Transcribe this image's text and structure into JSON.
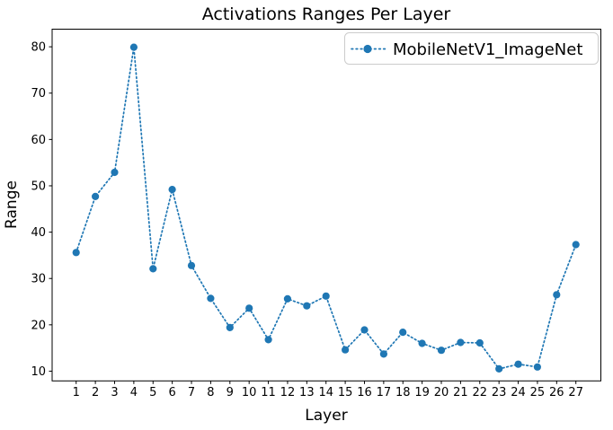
{
  "figure": {
    "background": "#ffffff"
  },
  "colors": {
    "accent": "#1f77b4",
    "spine": "#000000",
    "tick_text": "#000000",
    "legend_border": "#cccccc",
    "legend_background": "#ffffff"
  },
  "chart_data": {
    "type": "line",
    "title": "Activations Ranges Per Layer",
    "xlabel": "Layer",
    "ylabel": "Range",
    "x": [
      1,
      2,
      3,
      4,
      5,
      6,
      7,
      8,
      9,
      10,
      11,
      12,
      13,
      14,
      15,
      16,
      17,
      18,
      19,
      20,
      21,
      22,
      23,
      24,
      25,
      26,
      27
    ],
    "series": [
      {
        "name": "MobileNetV1_ImageNet",
        "values": [
          35.6,
          47.7,
          52.9,
          79.9,
          32.1,
          49.2,
          32.8,
          25.7,
          19.4,
          23.6,
          16.8,
          25.6,
          24.1,
          26.2,
          14.6,
          18.9,
          13.7,
          18.4,
          16.0,
          14.5,
          16.2,
          16.1,
          10.5,
          11.5,
          10.9,
          26.5,
          37.3
        ],
        "color": "#1f77b4",
        "linestyle": "dotted",
        "marker": "circle"
      }
    ],
    "xticks": [
      1,
      2,
      3,
      4,
      5,
      6,
      7,
      8,
      9,
      10,
      11,
      12,
      13,
      14,
      15,
      16,
      17,
      18,
      19,
      20,
      21,
      22,
      23,
      24,
      25,
      26,
      27
    ],
    "yticks": [
      10,
      20,
      30,
      40,
      50,
      60,
      70,
      80
    ],
    "xlim": [
      -0.25,
      28.3
    ],
    "ylim": [
      7.9,
      83.8
    ],
    "grid": false,
    "legend": {
      "label": "MobileNetV1_ImageNet",
      "position": "upper right"
    }
  }
}
